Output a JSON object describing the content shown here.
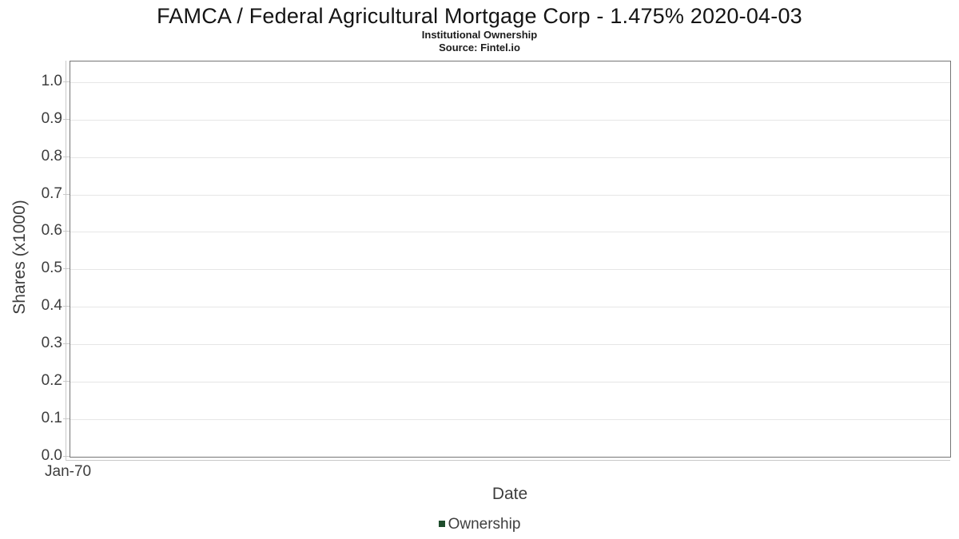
{
  "chart_data": {
    "type": "line",
    "title": "FAMCA / Federal Agricultural Mortgage Corp - 1.475% 2020-04-03",
    "subtitle": "Institutional Ownership",
    "source": "Source: Fintel.io",
    "xlabel": "Date",
    "ylabel": "Shares (x1000)",
    "x_tick_labels": [
      "Jan-70"
    ],
    "y_tick_labels": [
      "0.0",
      "0.1",
      "0.2",
      "0.3",
      "0.4",
      "0.5",
      "0.6",
      "0.7",
      "0.8",
      "0.9",
      "1.0"
    ],
    "y_tick_values": [
      0,
      0.1,
      0.2,
      0.3,
      0.4,
      0.5,
      0.6,
      0.7,
      0.8,
      0.9,
      1.0
    ],
    "ylim": [
      0,
      1.055
    ],
    "grid": true,
    "legend_position": "bottom",
    "series": [
      {
        "name": "Ownership",
        "color": "#1e4d2c",
        "x": [],
        "values": []
      }
    ]
  },
  "colors": {
    "plot_border": "#757575",
    "gridline": "#e6e6e6",
    "axis_line": "#c9c9c9",
    "text": "#3d3d3d",
    "legend_marker": "#1e4d2c"
  }
}
